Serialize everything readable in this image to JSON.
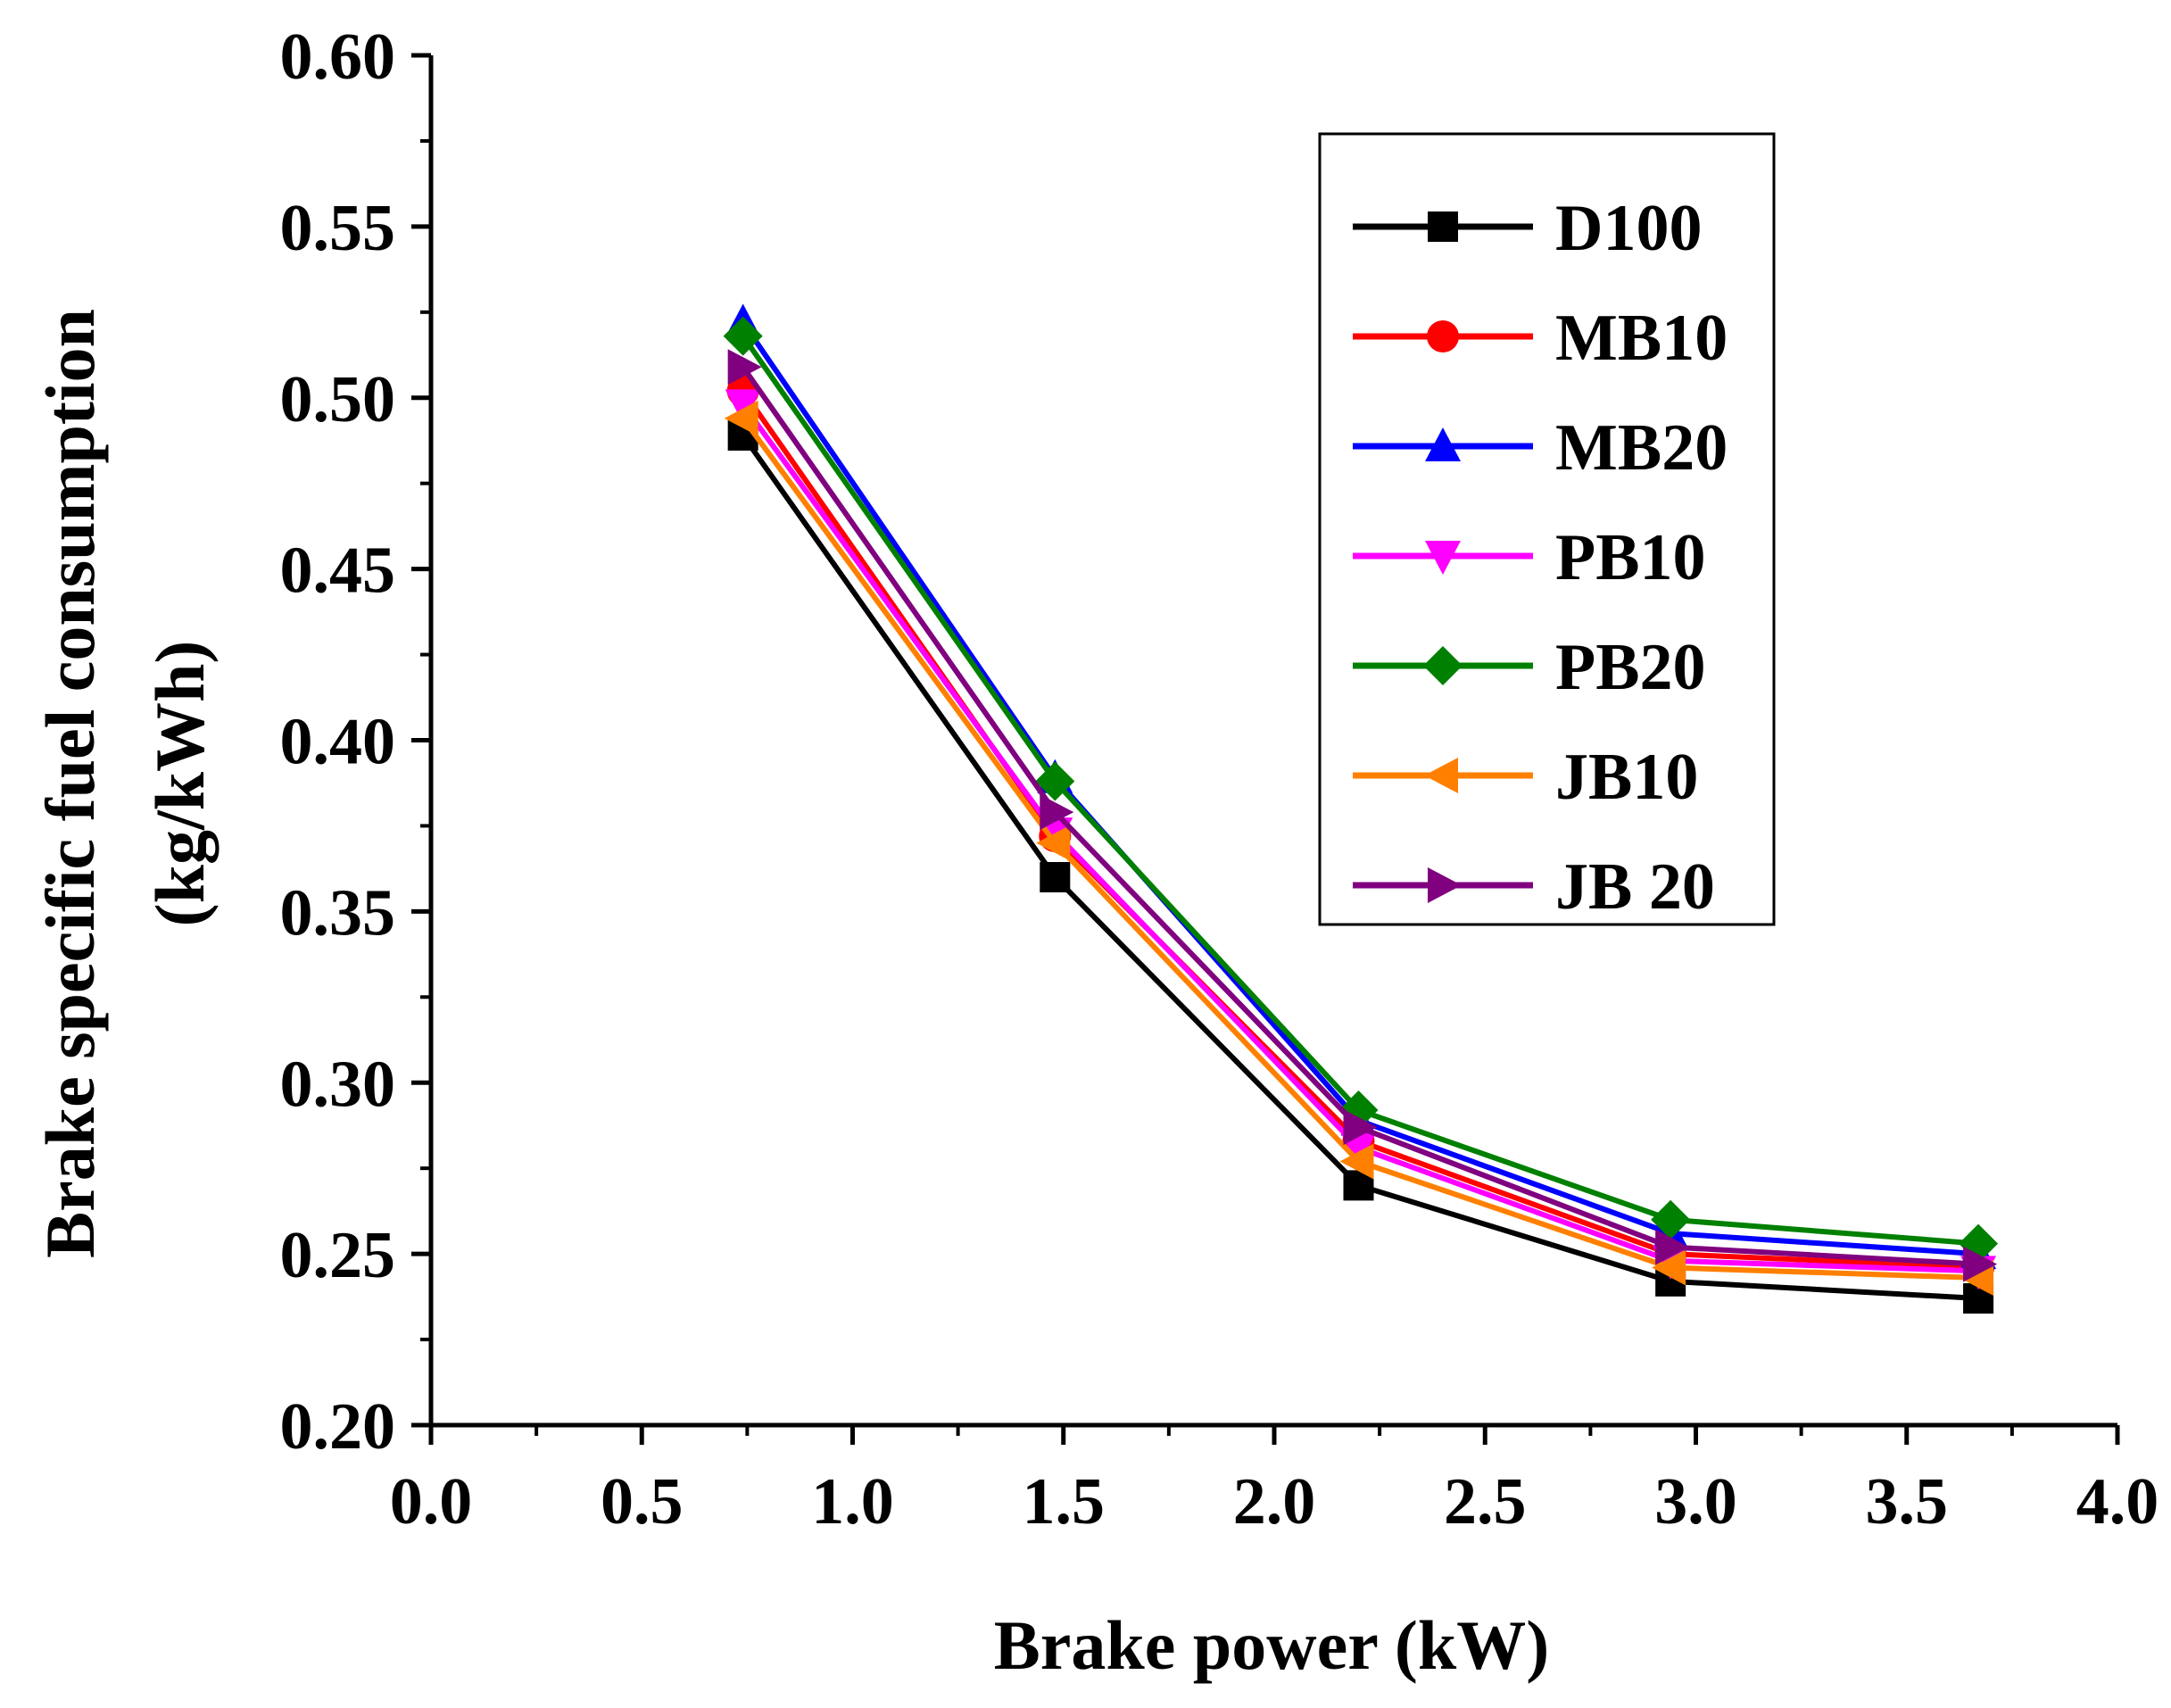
{
  "chart_data": {
    "type": "line",
    "title": "",
    "xlabel": "Brake power (kW)",
    "ylabel_line1": "Brake specific fuel consumption",
    "ylabel_line2": "(kg/kWh)",
    "xlim": [
      0.0,
      4.0
    ],
    "ylim": [
      0.2,
      0.6
    ],
    "x_ticks": [
      "0.0",
      "0.5",
      "1.0",
      "1.5",
      "2.0",
      "2.5",
      "3.0",
      "3.5",
      "4.0"
    ],
    "y_ticks": [
      "0.20",
      "0.25",
      "0.30",
      "0.35",
      "0.40",
      "0.45",
      "0.50",
      "0.55",
      "0.60"
    ],
    "grid": false,
    "legend_position": "top-right",
    "x": [
      0.74,
      1.48,
      2.2,
      2.94,
      3.67
    ],
    "series": [
      {
        "name": "D100",
        "color": "#000000",
        "marker": "square",
        "values": [
          0.489,
          0.36,
          0.27,
          0.242,
          0.237
        ]
      },
      {
        "name": "MB10",
        "color": "#ff0000",
        "marker": "circle",
        "values": [
          0.502,
          0.372,
          0.283,
          0.25,
          0.246
        ]
      },
      {
        "name": "MB20",
        "color": "#0000ff",
        "marker": "triangle-up",
        "values": [
          0.522,
          0.389,
          0.289,
          0.256,
          0.25
        ]
      },
      {
        "name": "PB10",
        "color": "#ff00ff",
        "marker": "triangle-down",
        "values": [
          0.498,
          0.373,
          0.281,
          0.248,
          0.245
        ]
      },
      {
        "name": "PB20",
        "color": "#008000",
        "marker": "diamond",
        "values": [
          0.518,
          0.388,
          0.292,
          0.26,
          0.253
        ]
      },
      {
        "name": "JB10",
        "color": "#ff8000",
        "marker": "triangle-left",
        "values": [
          0.494,
          0.37,
          0.277,
          0.246,
          0.243
        ]
      },
      {
        "name": "JB 20",
        "color": "#800080",
        "marker": "triangle-right",
        "values": [
          0.509,
          0.379,
          0.287,
          0.252,
          0.247
        ]
      }
    ]
  }
}
